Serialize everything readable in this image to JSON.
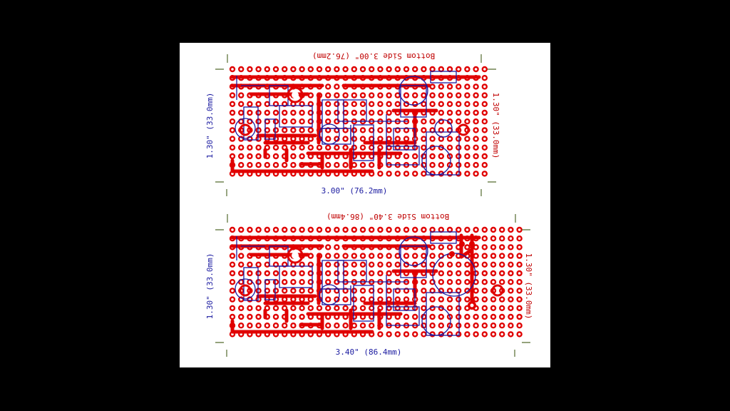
{
  "colors": {
    "background": "#000000",
    "sheet": "#ffffff",
    "copper": "#e00000",
    "silkscreen": "#1a1aa0",
    "dimension_mark": "#556b2f"
  },
  "boards": [
    {
      "id": "top",
      "top_label": "Bottom Side  3.00\" (76.2mm)",
      "bottom_label": "3.00\" (76.2mm)",
      "left_label": "1.30\" (33.0mm)",
      "right_label": "1.30\" (33.0mm)"
    },
    {
      "id": "bottom",
      "top_label": "Bottom Side  3.40\" (86.4mm)",
      "bottom_label": "3.40\" (86.4mm)",
      "left_label": "1.30\" (33.0mm)",
      "right_label": "1.30\" (33.0mm)"
    }
  ]
}
